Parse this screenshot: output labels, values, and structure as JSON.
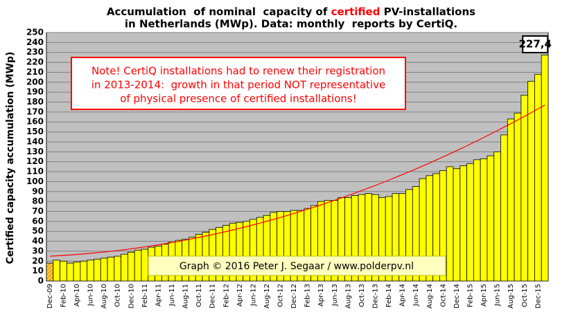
{
  "chart_data": {
    "type": "bar",
    "title": [
      "Accumulation  of nominal  capacity of ",
      "certified",
      " PV-installations"
    ],
    "title_line2": "in Netherlands (MWp). Data: monthly  reports by CertiQ.",
    "ylabel": "Certified capacity accumulation (MWp)",
    "annotations": [
      "Note! CertiQ installations had to renew their registration",
      "in 2013-2014:  growth in that period NOT representative",
      "of physical presence of certified installations!"
    ],
    "credit": "Graph © 2016 Peter J. Segaar / www.polderpv.nl",
    "categories": [
      "Dec-09",
      null,
      "Feb-10",
      null,
      "Apr-10",
      null,
      "Jun-10",
      null,
      "Aug-10",
      null,
      "Oct-10",
      null,
      "Dec-10",
      null,
      "Feb-11",
      null,
      "Apr-11",
      null,
      "Jun-11",
      null,
      "Aug-11",
      null,
      "Oct-11",
      null,
      "Dec-11",
      null,
      "Feb-12",
      null,
      "Apr-12",
      null,
      "Jun-12",
      null,
      "Aug-12",
      null,
      "Oct-12",
      null,
      "Dec-12",
      null,
      "Feb-13",
      null,
      "Apr-13",
      null,
      "Jun-13",
      null,
      "Aug-13",
      null,
      "Oct-13",
      null,
      "Dec-13",
      null,
      "Feb-14",
      null,
      "Apr-14",
      null,
      "Jun-14",
      null,
      "Aug-14",
      null,
      "Oct-14",
      null,
      "Dec-14",
      null,
      "Feb-15",
      null,
      "Apr-15",
      null,
      "Jun-15",
      null,
      "Aug-15",
      null,
      "Oct-15",
      null,
      "Dec-15",
      null
    ],
    "series": [
      {
        "color": "#ffff00",
        "values": [
          18,
          21,
          20,
          18,
          19,
          20,
          21,
          22,
          23,
          24,
          25,
          27,
          29,
          31,
          32,
          34,
          35,
          37,
          39,
          41,
          42,
          44,
          47,
          49,
          52,
          54,
          56,
          58,
          59,
          60,
          62,
          64,
          66,
          69,
          70,
          70,
          71,
          71,
          73,
          76,
          80,
          81,
          81,
          84,
          84,
          86,
          87,
          88,
          87,
          84,
          85,
          88,
          88,
          92,
          95,
          103,
          106,
          108,
          111,
          115,
          113,
          116,
          118,
          122,
          123,
          126,
          130,
          147,
          163,
          169,
          187,
          201,
          208,
          227.4
        ],
        "value_labels": [
          null,
          null,
          null,
          null,
          null,
          null,
          null,
          null,
          null,
          null,
          null,
          null,
          null,
          null,
          null,
          null,
          null,
          null,
          null,
          null,
          null,
          null,
          null,
          null,
          null,
          null,
          null,
          null,
          null,
          null,
          null,
          null,
          null,
          null,
          null,
          null,
          null,
          null,
          null,
          null,
          null,
          null,
          null,
          null,
          null,
          null,
          null,
          null,
          null,
          null,
          null,
          null,
          null,
          null,
          null,
          null,
          null,
          null,
          null,
          null,
          null,
          null,
          null,
          null,
          null,
          null,
          null,
          null,
          null,
          null,
          null,
          null,
          null,
          "227,4"
        ]
      },
      {
        "type": "line",
        "color": "#ff0000",
        "values": [
          25.0,
          25.35,
          25.76,
          26.21,
          26.7,
          27.25,
          27.84,
          28.49,
          29.18,
          29.91,
          30.7,
          31.53,
          32.42,
          33.35,
          34.32,
          35.35,
          36.42,
          37.55,
          38.72,
          39.93,
          41.2,
          42.51,
          43.88,
          45.28,
          46.74,
          48.25,
          49.8,
          51.41,
          53.06,
          54.76,
          56.5,
          58.3,
          60.14,
          62.03,
          63.96,
          65.95,
          68.0,
          70.1,
          72.2,
          74.4,
          76.6,
          78.9,
          81.2,
          83.6,
          86.0,
          88.5,
          91.0,
          93.5,
          96.1,
          98.8,
          101.5,
          104.3,
          107.1,
          109.9,
          112.8,
          115.8,
          118.7,
          121.8,
          124.9,
          128.0,
          131.2,
          134.4,
          137.7,
          141.1,
          144.4,
          147.9,
          151.3,
          154.9,
          158.4,
          162.0,
          165.7,
          169.4,
          173.2,
          177.0
        ]
      }
    ],
    "ylim": [
      0,
      250
    ],
    "yticks": [
      0,
      10,
      20,
      30,
      40,
      50,
      60,
      70,
      80,
      90,
      100,
      110,
      120,
      130,
      140,
      150,
      160,
      170,
      180,
      190,
      200,
      210,
      220,
      230,
      240,
      250
    ],
    "grid": true
  }
}
